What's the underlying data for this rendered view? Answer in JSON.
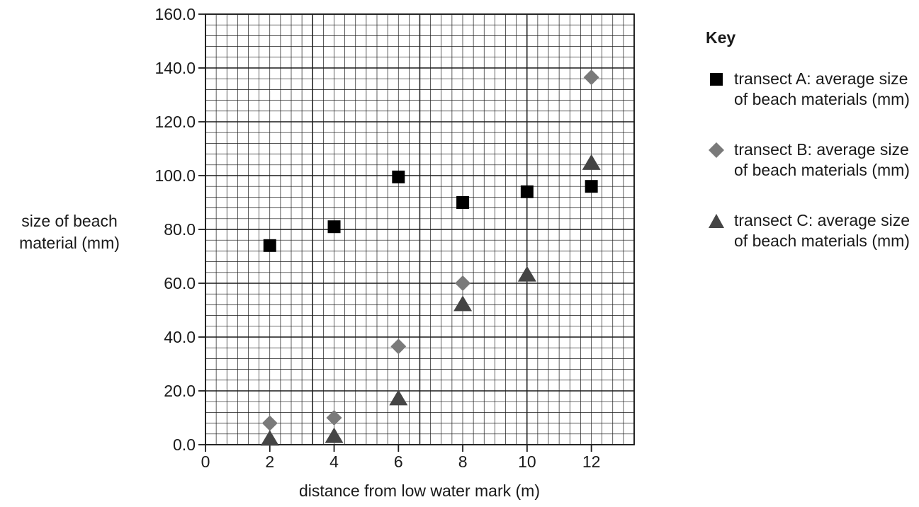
{
  "chart_data": {
    "type": "scatter",
    "title": "",
    "xlabel": "distance from low water mark (m)",
    "ylabel_lines": [
      "size of beach",
      "material (mm)"
    ],
    "xlim": [
      0,
      13.33
    ],
    "ylim": [
      0,
      160
    ],
    "x_ticks": [
      0,
      2,
      4,
      6,
      8,
      10,
      12
    ],
    "y_ticks": [
      "0.0",
      "20.0",
      "40.0",
      "60.0",
      "80.0",
      "100.0",
      "120.0",
      "140.0",
      "160.0"
    ],
    "grid": true,
    "legend_position": "right",
    "legend_title": "Key",
    "series": [
      {
        "name": "transect A: average size of beach materials (mm)",
        "marker": "square",
        "color": "#000000",
        "points": [
          [
            2,
            74
          ],
          [
            4,
            81
          ],
          [
            6,
            99.5
          ],
          [
            8,
            90
          ],
          [
            10,
            94
          ],
          [
            12,
            96
          ]
        ]
      },
      {
        "name": "transect B: average size of beach materials (mm)",
        "marker": "diamond",
        "color": "#7a7a7a",
        "points": [
          [
            2,
            8
          ],
          [
            4,
            10
          ],
          [
            6,
            36.5
          ],
          [
            8,
            60
          ],
          [
            12,
            136.5
          ]
        ]
      },
      {
        "name": "transect C: average size of beach materials (mm)",
        "marker": "triangle",
        "color": "#454545",
        "points": [
          [
            2,
            2
          ],
          [
            4,
            3
          ],
          [
            6,
            17
          ],
          [
            8,
            52
          ],
          [
            10,
            63
          ],
          [
            12,
            104.5
          ]
        ]
      }
    ]
  }
}
